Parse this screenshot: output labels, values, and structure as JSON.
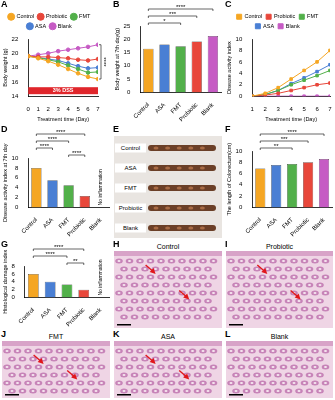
{
  "chart_data": [
    {
      "panel": "A",
      "type": "line",
      "x_label": "Treatment time (Day)",
      "y_label": "Body weight (g)",
      "x": [
        0,
        1,
        2,
        3,
        4,
        5,
        6,
        7
      ],
      "xlim": [
        0,
        7
      ],
      "xticks": [
        0,
        1,
        2,
        3,
        4,
        5,
        6,
        7
      ],
      "ylim": [
        14,
        22
      ],
      "yticks": [
        14,
        16,
        18,
        20,
        22
      ],
      "grid": false,
      "legend": "top",
      "marker": "circle",
      "series": [
        {
          "name": "Control",
          "color": "#F5A623",
          "values": [
            19.6,
            19.3,
            18.9,
            18.4,
            17.8,
            17.2,
            16.7,
            16.4
          ]
        },
        {
          "name": "Probiotic",
          "color": "#E8473B",
          "values": [
            19.6,
            19.5,
            19.5,
            19.4,
            19.3,
            19.1,
            19.0,
            19.2
          ]
        },
        {
          "name": "FMT",
          "color": "#52B04A",
          "values": [
            19.6,
            19.4,
            19.1,
            18.8,
            18.3,
            17.8,
            17.3,
            17.4
          ]
        },
        {
          "name": "ASA",
          "color": "#4A7FD4",
          "values": [
            19.6,
            19.4,
            19.2,
            19.0,
            18.6,
            18.2,
            17.9,
            18.0
          ]
        },
        {
          "name": "Blank",
          "color": "#C65BC4",
          "values": [
            19.6,
            19.8,
            20.0,
            20.3,
            20.5,
            20.7,
            20.9,
            21.2
          ]
        }
      ],
      "annotations": [
        {
          "text": "3% DSS",
          "from": 0,
          "to": 7
        }
      ],
      "significance": [
        {
          "from": "Control",
          "to": "Blank",
          "label": "****"
        }
      ]
    },
    {
      "panel": "B",
      "type": "bar",
      "y_label": "Body weight at 7th day(g)",
      "categories": [
        "Control",
        "ASA",
        "FMT",
        "Probiotic",
        "Blank"
      ],
      "values": [
        16.4,
        18.0,
        17.4,
        19.2,
        21.2
      ],
      "colors": [
        "#F5A623",
        "#4A7FD4",
        "#52B04A",
        "#E8473B",
        "#C65BC4"
      ],
      "ylim": [
        0,
        25
      ],
      "yticks": [
        0,
        5,
        10,
        15,
        20,
        25
      ],
      "grid": false,
      "significance": [
        {
          "from": "Control",
          "to": "Blank",
          "label": "****"
        },
        {
          "from": "Control",
          "to": "Probiotic",
          "label": "***"
        },
        {
          "from": "Control",
          "to": "FMT",
          "label": "*"
        }
      ]
    },
    {
      "panel": "C",
      "type": "line",
      "x_label": "Treatment time (Day)",
      "y_label": "Disease activity index",
      "x": [
        1,
        2,
        3,
        4,
        5,
        6,
        7
      ],
      "xlim": [
        1,
        7
      ],
      "xticks": [
        1,
        2,
        3,
        4,
        5,
        6,
        7
      ],
      "ylim": [
        0,
        10
      ],
      "yticks": [
        0,
        2,
        4,
        6,
        8,
        10
      ],
      "grid": false,
      "legend": "top",
      "marker": "square",
      "series": [
        {
          "name": "Control",
          "color": "#F5A623",
          "values": [
            0,
            0.5,
            1.5,
            3,
            4.5,
            6,
            8
          ]
        },
        {
          "name": "Probiotic",
          "color": "#E8473B",
          "values": [
            0,
            0.2,
            0.5,
            1,
            1.5,
            2,
            2.3
          ]
        },
        {
          "name": "FMT",
          "color": "#52B04A",
          "values": [
            0,
            0.3,
            1,
            2,
            2.8,
            3.6,
            4.5
          ]
        },
        {
          "name": "ASA",
          "color": "#4A7FD4",
          "values": [
            0,
            0.3,
            1,
            2.2,
            3.2,
            4.3,
            5.5
          ]
        },
        {
          "name": "Blank",
          "color": "#C65BC4",
          "values": [
            0,
            0,
            0,
            0,
            0,
            0,
            0
          ]
        }
      ]
    },
    {
      "panel": "D",
      "type": "bar",
      "y_label": "Disease activity index at 7th day",
      "categories": [
        "Control",
        "ASA",
        "FMT",
        "Probiotic",
        "Blank"
      ],
      "values": [
        8,
        5.5,
        4.5,
        2.3,
        0
      ],
      "colors": [
        "#F5A623",
        "#4A7FD4",
        "#52B04A",
        "#E8473B",
        "#C65BC4"
      ],
      "ylim": [
        0,
        10
      ],
      "yticks": [
        0,
        2,
        4,
        6,
        8,
        10
      ],
      "grid": false,
      "annotations": [
        {
          "category": "Blank",
          "text": "No inflammation"
        }
      ],
      "significance": [
        {
          "from": "Control",
          "to": "Probiotic",
          "label": "****"
        },
        {
          "from": "Control",
          "to": "FMT",
          "label": "****"
        },
        {
          "from": "Control",
          "to": "ASA",
          "label": "****"
        },
        {
          "from": "FMT",
          "to": "Probiotic",
          "label": "****"
        }
      ]
    },
    {
      "panel": "F",
      "type": "bar",
      "y_label": "The length of Colorectum(cm)",
      "categories": [
        "Control",
        "ASA",
        "FMT",
        "Probiotic",
        "Blank"
      ],
      "values": [
        6.9,
        7.5,
        7.7,
        8.0,
        8.6
      ],
      "colors": [
        "#F5A623",
        "#4A7FD4",
        "#52B04A",
        "#E8473B",
        "#C65BC4"
      ],
      "ylim": [
        0,
        10
      ],
      "yticks": [
        0,
        2,
        4,
        6,
        8,
        10
      ],
      "grid": false,
      "significance": [
        {
          "from": "Control",
          "to": "Blank",
          "label": "****"
        },
        {
          "from": "Control",
          "to": "Probiotic",
          "label": "***"
        },
        {
          "from": "Control",
          "to": "FMT",
          "label": "**"
        }
      ]
    },
    {
      "panel": "G",
      "type": "bar",
      "y_label": "Histological damage index",
      "categories": [
        "Control",
        "ASA",
        "FMT",
        "Probiotic",
        "Blank"
      ],
      "values": [
        6,
        4,
        3.3,
        2,
        0
      ],
      "colors": [
        "#F5A623",
        "#4A7FD4",
        "#52B04A",
        "#E8473B",
        "#C65BC4"
      ],
      "ylim": [
        0,
        8
      ],
      "yticks": [
        0,
        2,
        4,
        6,
        8
      ],
      "grid": false,
      "annotations": [
        {
          "category": "Blank",
          "text": "No inflammation"
        }
      ],
      "significance": [
        {
          "from": "Control",
          "to": "Probiotic",
          "label": "****"
        },
        {
          "from": "Control",
          "to": "FMT",
          "label": "****"
        },
        {
          "from": "FMT",
          "to": "Probiotic",
          "label": "**"
        }
      ]
    }
  ],
  "images": [
    {
      "panel": "E",
      "labels": [
        "Control",
        "ASA",
        "FMT",
        "Probiotic",
        "Blank"
      ]
    },
    {
      "panel": "H",
      "title": "Control"
    },
    {
      "panel": "I",
      "title": "Probiotic"
    },
    {
      "panel": "J",
      "title": "FMT"
    },
    {
      "panel": "K",
      "title": "ASA"
    },
    {
      "panel": "L",
      "title": "Blank"
    }
  ]
}
